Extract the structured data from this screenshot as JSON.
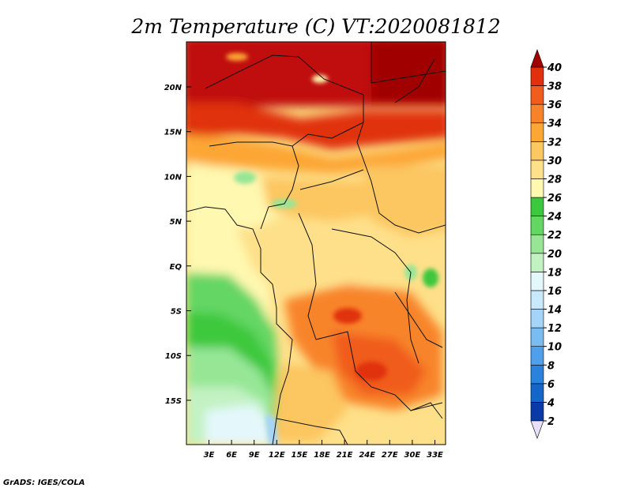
{
  "title": "2m Temperature (C) VT:2020081812",
  "credit": "GrADS: IGES/COLA",
  "map": {
    "lon_labels": [
      "3E",
      "6E",
      "9E",
      "12E",
      "15E",
      "18E",
      "21E",
      "24E",
      "27E",
      "30E",
      "33E"
    ],
    "lat_labels": [
      "20N",
      "15N",
      "10N",
      "5N",
      "EQ",
      "5S",
      "10S",
      "15S"
    ]
  },
  "colorbar": {
    "levels": [
      "2",
      "4",
      "6",
      "8",
      "10",
      "12",
      "14",
      "16",
      "18",
      "20",
      "22",
      "24",
      "26",
      "28",
      "30",
      "32",
      "34",
      "36",
      "38",
      "40"
    ],
    "colors": [
      "#101070",
      "#0a3aa8",
      "#1466c8",
      "#2a82dc",
      "#4fa0ea",
      "#78bcf2",
      "#a4d4f8",
      "#c8e8fc",
      "#e4f8fc",
      "#c2f2c2",
      "#96e696",
      "#64d664",
      "#3cc83c",
      "#fff8b0",
      "#fee08a",
      "#fcc660",
      "#fca634",
      "#f8842a",
      "#f05c1c",
      "#e0300e",
      "#c01008",
      "#a00000"
    ],
    "under_color": "#e6e0f8",
    "over_color": "#a00000"
  }
}
